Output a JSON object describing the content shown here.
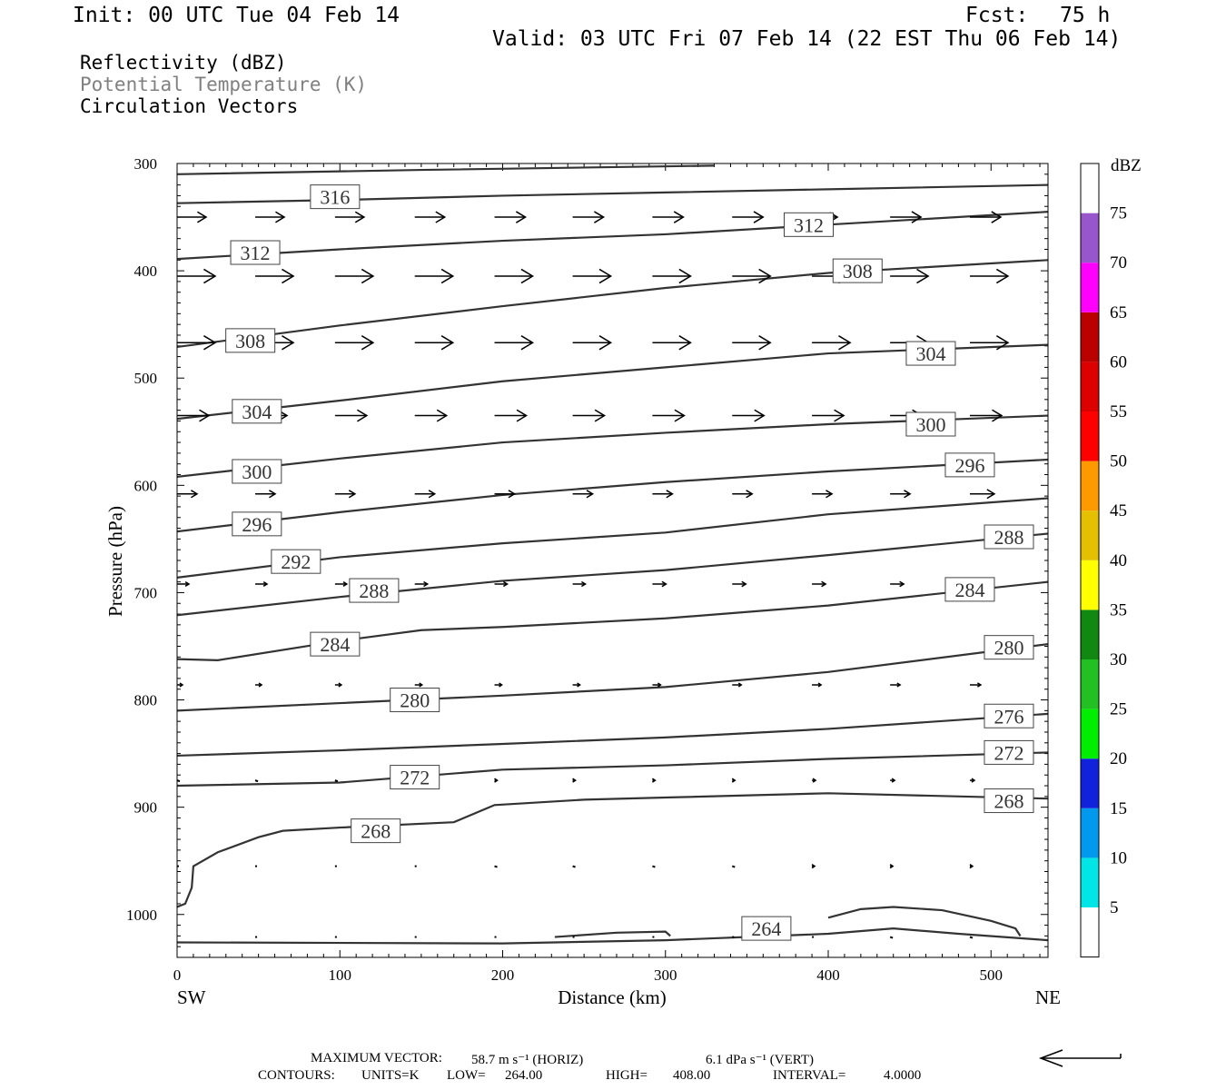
{
  "header": {
    "init": "Init: 00 UTC Tue 04 Feb 14",
    "fcst_label": "Fcst:",
    "fcst_value": "75 h",
    "valid": "Valid: 03 UTC Fri 07 Feb 14 (22 EST Thu 06 Feb 14)"
  },
  "fields": {
    "reflectivity": "Reflectivity (dBZ)",
    "potential_temperature": "Potential Temperature (K)",
    "circulation": "Circulation Vectors"
  },
  "colors": {
    "contour": "#333333",
    "field_secondary": "#808080",
    "axis": "#000000"
  },
  "footer": {
    "max_vector_label": "MAXIMUM VECTOR:",
    "max_vector_horiz": "58.7 m s⁻¹ (HORIZ)",
    "max_vector_vert": "6.1 dPa s⁻¹ (VERT)",
    "contours_label": "CONTOURS:",
    "units": "UNITS=K",
    "low": "LOW=",
    "low_value": "264.00",
    "high": "HIGH=",
    "high_value": "408.00",
    "interval": "INTERVAL=",
    "interval_value": "4.0000"
  },
  "chart_data": {
    "type": "line",
    "title": "Potential Temperature (K) cross section",
    "xlabel": "Distance (km)",
    "ylabel": "Pressure (hPa)",
    "xlim": [
      0,
      535
    ],
    "ylim": [
      1040,
      300
    ],
    "x_ticks": [
      0,
      100,
      200,
      300,
      400,
      500
    ],
    "y_ticks": [
      300,
      400,
      500,
      600,
      700,
      800,
      900,
      1000
    ],
    "left_end_label": "SW",
    "right_end_label": "NE",
    "contours": [
      {
        "value": 320,
        "points": [
          [
            0,
            310
          ],
          [
            150,
            306
          ],
          [
            330,
            302
          ]
        ]
      },
      {
        "value": 316,
        "points": [
          [
            0,
            337
          ],
          [
            100,
            334
          ],
          [
            200,
            330
          ],
          [
            300,
            327
          ],
          [
            400,
            324
          ],
          [
            535,
            320
          ]
        ],
        "label_at": [
          97,
          331
        ]
      },
      {
        "value": 312,
        "points": [
          [
            0,
            389
          ],
          [
            100,
            380
          ],
          [
            200,
            372
          ],
          [
            300,
            366
          ],
          [
            400,
            357
          ],
          [
            535,
            345
          ]
        ],
        "label_at": [
          48,
          383
        ]
      },
      {
        "value": 312,
        "points": [
          [
            370,
            357
          ]
        ],
        "label_at": [
          388,
          357
        ]
      },
      {
        "value": 308,
        "points": [
          [
            0,
            471
          ],
          [
            100,
            451
          ],
          [
            200,
            433
          ],
          [
            300,
            416
          ],
          [
            400,
            402
          ],
          [
            535,
            390
          ]
        ],
        "label_at": [
          45,
          465
        ]
      },
      {
        "value": 308,
        "points": [
          [
            420,
            400
          ]
        ],
        "label_at": [
          418,
          400
        ]
      },
      {
        "value": 304,
        "points": [
          [
            0,
            538
          ],
          [
            100,
            521
          ],
          [
            200,
            503
          ],
          [
            300,
            490
          ],
          [
            400,
            477
          ],
          [
            535,
            469
          ]
        ],
        "label_at": [
          49,
          531
        ]
      },
      {
        "value": 304,
        "points": [
          [
            460,
            477
          ]
        ],
        "label_at": [
          463,
          477
        ]
      },
      {
        "value": 300,
        "points": [
          [
            0,
            592
          ],
          [
            100,
            575
          ],
          [
            200,
            560
          ],
          [
            300,
            551
          ],
          [
            400,
            543
          ],
          [
            535,
            535
          ]
        ],
        "label_at": [
          49,
          587
        ]
      },
      {
        "value": 300,
        "points": [
          [
            460,
            543
          ]
        ],
        "label_at": [
          463,
          543
        ]
      },
      {
        "value": 296,
        "points": [
          [
            0,
            643
          ],
          [
            100,
            625
          ],
          [
            200,
            609
          ],
          [
            300,
            597
          ],
          [
            400,
            587
          ],
          [
            535,
            576
          ]
        ],
        "label_at": [
          49,
          636
        ]
      },
      {
        "value": 296,
        "points": [
          [
            485,
            581
          ]
        ],
        "label_at": [
          487,
          581
        ]
      },
      {
        "value": 292,
        "points": [
          [
            0,
            686
          ],
          [
            100,
            667
          ],
          [
            200,
            654
          ],
          [
            300,
            644
          ],
          [
            400,
            627
          ],
          [
            535,
            612
          ]
        ],
        "label_at": [
          73,
          671
        ]
      },
      {
        "value": 288,
        "points": [
          [
            0,
            721
          ],
          [
            100,
            704
          ],
          [
            200,
            689
          ],
          [
            300,
            679
          ],
          [
            400,
            665
          ],
          [
            535,
            645
          ]
        ],
        "label_at": [
          121,
          698
        ]
      },
      {
        "value": 288,
        "points": [
          [
            510,
            648
          ]
        ],
        "label_at": [
          511,
          648
        ]
      },
      {
        "value": 284,
        "points": [
          [
            0,
            762
          ],
          [
            25,
            763
          ],
          [
            100,
            745
          ],
          [
            150,
            735
          ],
          [
            200,
            732
          ],
          [
            300,
            724
          ],
          [
            400,
            712
          ],
          [
            535,
            690
          ]
        ],
        "label_at": [
          97,
          748
        ]
      },
      {
        "value": 284,
        "points": [
          [
            485,
            697
          ]
        ],
        "label_at": [
          487,
          697
        ]
      },
      {
        "value": 280,
        "points": [
          [
            0,
            810
          ],
          [
            100,
            803
          ],
          [
            200,
            796
          ],
          [
            300,
            788
          ],
          [
            400,
            774
          ],
          [
            535,
            748
          ]
        ],
        "label_at": [
          146,
          800
        ]
      },
      {
        "value": 280,
        "points": [
          [
            510,
            751
          ]
        ],
        "label_at": [
          511,
          751
        ]
      },
      {
        "value": 276,
        "points": [
          [
            0,
            852
          ],
          [
            100,
            847
          ],
          [
            200,
            841
          ],
          [
            300,
            835
          ],
          [
            400,
            827
          ],
          [
            535,
            813
          ]
        ],
        "label_at": [
          511,
          815
        ]
      },
      {
        "value": 272,
        "points": [
          [
            0,
            880
          ],
          [
            100,
            877
          ],
          [
            200,
            865
          ],
          [
            300,
            861
          ],
          [
            400,
            855
          ],
          [
            535,
            849
          ]
        ],
        "label_at": [
          146,
          872
        ]
      },
      {
        "value": 272,
        "points": [
          [
            510,
            849
          ]
        ],
        "label_at": [
          511,
          849
        ]
      },
      {
        "value": 268,
        "points": [
          [
            0,
            993
          ],
          [
            5,
            990
          ],
          [
            9,
            975
          ],
          [
            10,
            955
          ],
          [
            25,
            942
          ],
          [
            50,
            928
          ],
          [
            65,
            922
          ],
          [
            100,
            919
          ],
          [
            170,
            914
          ],
          [
            195,
            898
          ],
          [
            250,
            893
          ],
          [
            300,
            891
          ],
          [
            400,
            887
          ],
          [
            535,
            892
          ]
        ],
        "label_at": [
          122,
          922
        ]
      },
      {
        "value": 268,
        "points": [
          [
            510,
            894
          ]
        ],
        "label_at": [
          511,
          894
        ]
      },
      {
        "value": 264,
        "points": [
          [
            0,
            1026
          ],
          [
            200,
            1027
          ],
          [
            300,
            1024
          ],
          [
            400,
            1018
          ],
          [
            440,
            1013
          ],
          [
            480,
            1018
          ],
          [
            535,
            1024
          ]
        ],
        "label_at": [
          362,
          1013
        ]
      },
      {
        "value": 264,
        "points": [
          [
            232,
            1021
          ],
          [
            270,
            1017
          ],
          [
            300,
            1016
          ],
          [
            303,
            1020
          ]
        ]
      },
      {
        "value": 264,
        "points": [
          [
            400,
            1003
          ],
          [
            420,
            995
          ],
          [
            440,
            993
          ],
          [
            470,
            996
          ],
          [
            500,
            1006
          ],
          [
            515,
            1013
          ],
          [
            518,
            1020
          ]
        ]
      }
    ],
    "vectors": [
      {
        "p": 350,
        "x": [
          0,
          48,
          97,
          146,
          195,
          243,
          292,
          341,
          390,
          438,
          487
        ],
        "dx": [
          32,
          32,
          32,
          33,
          34,
          34,
          34,
          34,
          28,
          34,
          34
        ]
      },
      {
        "p": 405,
        "x": [
          0,
          48,
          97,
          146,
          195,
          243,
          292,
          341,
          390,
          438,
          487
        ],
        "dx": [
          42,
          42,
          42,
          42,
          42,
          42,
          42,
          42,
          42,
          42,
          42
        ]
      },
      {
        "p": 467,
        "x": [
          0,
          48,
          97,
          146,
          195,
          243,
          292,
          341,
          390,
          438,
          487
        ],
        "dx": [
          42,
          42,
          42,
          42,
          42,
          42,
          42,
          42,
          42,
          42,
          42
        ]
      },
      {
        "p": 535,
        "x": [
          0,
          48,
          97,
          146,
          195,
          243,
          292,
          341,
          390,
          438,
          487
        ],
        "dx": [
          35,
          35,
          35,
          35,
          35,
          35,
          35,
          35,
          35,
          35,
          35
        ]
      },
      {
        "p": 608,
        "x": [
          0,
          48,
          97,
          146,
          195,
          243,
          292,
          341,
          390,
          438,
          487
        ],
        "dx": [
          22,
          22,
          22,
          22,
          22,
          22,
          22,
          22,
          22,
          22,
          27
        ]
      },
      {
        "p": 692,
        "x": [
          0,
          48,
          97,
          146,
          195,
          243,
          292,
          341,
          390,
          438,
          487
        ],
        "dx": [
          13,
          13,
          13,
          14,
          14,
          14,
          15,
          15,
          15,
          15,
          17
        ]
      },
      {
        "p": 786,
        "x": [
          0,
          48,
          97,
          146,
          195,
          243,
          292,
          341,
          390,
          438,
          487
        ],
        "dx": [
          6,
          7,
          7,
          8,
          8,
          8,
          9,
          10,
          10,
          11,
          12
        ]
      },
      {
        "p": 875,
        "x": [
          0,
          48,
          97,
          146,
          195,
          243,
          292,
          341,
          390,
          438,
          487
        ],
        "dx": [
          2,
          2,
          2,
          2,
          3,
          3,
          3,
          3,
          4,
          5,
          5
        ]
      },
      {
        "p": 955,
        "x": [
          0,
          48,
          97,
          146,
          195,
          243,
          292,
          341,
          390,
          438,
          487
        ],
        "dx": [
          1,
          1,
          1,
          1,
          2,
          2,
          2,
          2,
          3,
          3,
          3
        ]
      },
      {
        "p": 1021,
        "x": [
          48,
          97,
          146,
          195,
          243,
          292,
          341,
          390,
          438,
          487
        ],
        "dx": [
          1,
          1,
          1,
          1,
          1,
          1,
          1,
          1,
          2,
          2
        ]
      }
    ],
    "colorbar": {
      "label": "dBZ",
      "levels": [
        "5",
        "10",
        "15",
        "20",
        "25",
        "30",
        "35",
        "40",
        "45",
        "50",
        "55",
        "60",
        "65",
        "70",
        "75"
      ],
      "colors": [
        "#ffffff",
        "#00e5e5",
        "#0099ee",
        "#1122dd",
        "#00ee00",
        "#22c022",
        "#118811",
        "#ffff00",
        "#e5c000",
        "#ff9900",
        "#ff0000",
        "#dd0000",
        "#bb0000",
        "#ff00ff",
        "#9955cc",
        "#ffffff"
      ]
    }
  }
}
